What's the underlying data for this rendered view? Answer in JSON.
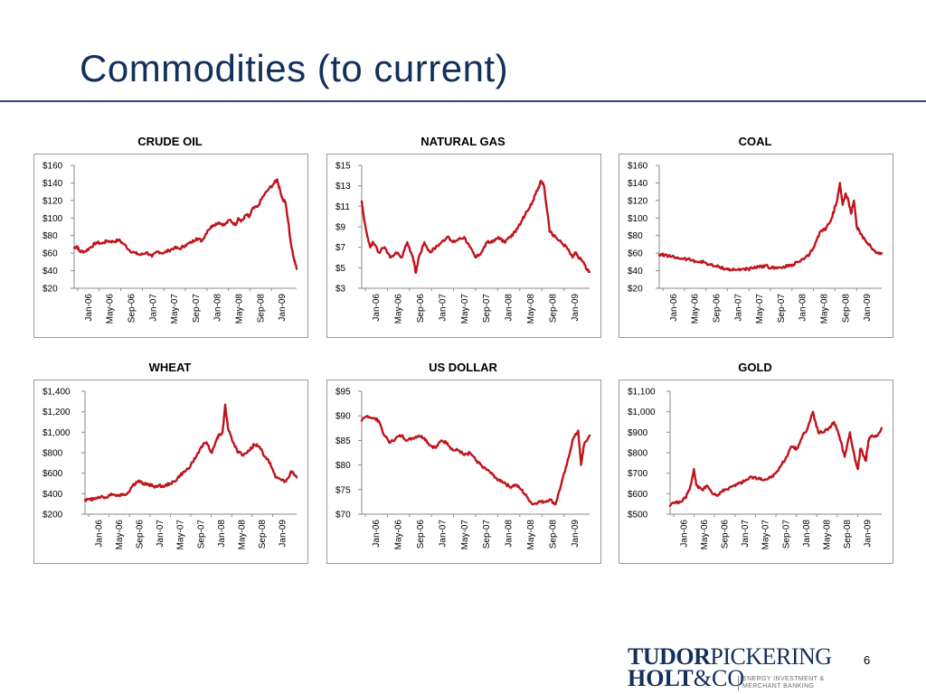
{
  "slide": {
    "title": "Commodities (to current)",
    "page_number": "6"
  },
  "logo": {
    "line1_bold": "TUDOR",
    "line1_rest": "PICKERING",
    "line2_bold": "HOLT",
    "line2_rest": "&CO",
    "tagline_1": "ENERGY INVESTMENT &",
    "tagline_2": "MERCHANT BANKING"
  },
  "colors": {
    "series": "#c0141c",
    "title": "#13305a",
    "axis": "#8a8a8a"
  },
  "chart_data": [
    {
      "id": "crude-oil",
      "type": "line",
      "title": "CRUDE OIL",
      "ylim": [
        20,
        160
      ],
      "yticks": [
        20,
        40,
        60,
        80,
        100,
        120,
        140,
        160
      ],
      "ytick_labels": [
        "$20",
        "$40",
        "$60",
        "$80",
        "$100",
        "$120",
        "$140",
        "$160"
      ],
      "xticks": [
        "Jan-06",
        "May-06",
        "Sep-06",
        "Jan-07",
        "May-07",
        "Sep-07",
        "Jan-08",
        "May-08",
        "Sep-08",
        "Jan-09"
      ],
      "xrange": [
        0,
        40
      ],
      "series": [
        {
          "x": [
            0,
            0.5,
            1,
            2,
            3,
            4,
            5,
            6,
            7,
            8,
            9,
            10,
            11,
            12,
            13,
            14,
            15,
            16,
            17,
            18,
            19,
            20,
            21,
            22,
            23,
            24,
            25,
            26,
            27,
            28,
            29,
            29.5,
            30,
            31,
            31.5,
            32,
            33,
            34,
            35,
            36,
            36.5,
            37,
            37.5,
            38,
            38.5,
            39,
            39.5,
            40
          ],
          "y": [
            66,
            68,
            62,
            62,
            67,
            72,
            71,
            74,
            73,
            75,
            70,
            63,
            60,
            58,
            61,
            56,
            62,
            60,
            63,
            66,
            65,
            69,
            72,
            77,
            74,
            86,
            92,
            95,
            92,
            98,
            92,
            100,
            96,
            104,
            101,
            110,
            113,
            125,
            133,
            140,
            144,
            132,
            121,
            118,
            95,
            70,
            55,
            42
          ]
        }
      ]
    },
    {
      "id": "natural-gas",
      "type": "line",
      "title": "NATURAL GAS",
      "ylim": [
        3,
        15
      ],
      "yticks": [
        3,
        5,
        7,
        9,
        11,
        13,
        15
      ],
      "ytick_labels": [
        "$3",
        "$5",
        "$7",
        "$9",
        "$11",
        "$13",
        "$15"
      ],
      "xticks": [
        "Jan-06",
        "May-06",
        "Sep-06",
        "Jan-07",
        "May-07",
        "Sep-07",
        "Jan-08",
        "May-08",
        "Sep-08",
        "Jan-09"
      ],
      "xrange": [
        0,
        40
      ],
      "series": [
        {
          "x": [
            0,
            0.5,
            1,
            1.5,
            2,
            3,
            4,
            5,
            6,
            7,
            8,
            9,
            9.5,
            10,
            11,
            12,
            13,
            14,
            15,
            16,
            17,
            18,
            19,
            20,
            21,
            22,
            23,
            24,
            25,
            26,
            27,
            28,
            29,
            30,
            31,
            31.5,
            32,
            33,
            34,
            35,
            36,
            37,
            37.5,
            38,
            39,
            39.5,
            40
          ],
          "y": [
            11.5,
            9.5,
            8,
            7,
            7.5,
            6.5,
            7,
            6,
            6.5,
            6,
            7.5,
            6,
            4.5,
            6,
            7.5,
            6.5,
            7,
            7.5,
            8,
            7.5,
            7.8,
            8,
            7,
            6,
            6.5,
            7.5,
            7.5,
            8,
            7.5,
            8,
            8.5,
            9.5,
            10.5,
            11.5,
            12.8,
            13.5,
            13,
            8.5,
            8,
            7.5,
            7,
            6,
            6.5,
            6,
            5.5,
            4.8,
            4.6
          ]
        }
      ]
    },
    {
      "id": "coal",
      "type": "line",
      "title": "COAL",
      "ylim": [
        20,
        160
      ],
      "yticks": [
        20,
        40,
        60,
        80,
        100,
        120,
        140,
        160
      ],
      "ytick_labels": [
        "$20",
        "$40",
        "$60",
        "$80",
        "$100",
        "$120",
        "$140",
        "$160"
      ],
      "xticks": [
        "Jan-06",
        "May-06",
        "Sep-06",
        "Jan-07",
        "May-07",
        "Sep-07",
        "Jan-08",
        "May-08",
        "Sep-08",
        "Jan-09"
      ],
      "xrange": [
        0,
        40
      ],
      "series": [
        {
          "x": [
            0,
            1,
            2,
            3,
            4,
            5,
            6,
            7,
            8,
            9,
            10,
            11,
            12,
            13,
            14,
            15,
            16,
            17,
            18,
            19,
            20,
            21,
            22,
            23,
            24,
            25,
            26,
            27,
            28,
            29,
            30,
            31,
            31.5,
            32,
            32.5,
            33,
            33.5,
            34,
            34.5,
            35,
            35.5,
            36,
            37,
            38,
            39,
            40
          ],
          "y": [
            58,
            58,
            56,
            55,
            54,
            53,
            52,
            50,
            50,
            47,
            45,
            44,
            42,
            41,
            41,
            42,
            42,
            43,
            44,
            46,
            43,
            44,
            43,
            45,
            47,
            50,
            53,
            58,
            70,
            85,
            88,
            100,
            110,
            120,
            140,
            115,
            128,
            120,
            105,
            120,
            90,
            85,
            75,
            68,
            60,
            60
          ]
        }
      ]
    },
    {
      "id": "wheat",
      "type": "line",
      "title": "WHEAT",
      "ylim": [
        200,
        1400
      ],
      "yticks": [
        200,
        400,
        600,
        800,
        1000,
        1200,
        1400
      ],
      "ytick_labels": [
        "$200",
        "$400",
        "$600",
        "$800",
        "$1,000",
        "$1,200",
        "$1,400"
      ],
      "xticks": [
        "Jan-06",
        "May-06",
        "Sep-06",
        "Jan-07",
        "May-07",
        "Sep-07",
        "Jan-08",
        "May-08",
        "Sep-08",
        "Jan-09"
      ],
      "xrange": [
        0,
        40
      ],
      "series": [
        {
          "x": [
            0,
            1,
            2,
            3,
            4,
            5,
            6,
            7,
            8,
            9,
            10,
            11,
            12,
            13,
            14,
            15,
            16,
            17,
            18,
            19,
            20,
            21,
            22,
            23,
            24,
            25,
            25.5,
            26,
            26.5,
            27,
            28,
            29,
            30,
            31,
            32,
            33,
            34,
            35,
            36,
            37,
            38,
            39,
            40
          ],
          "y": [
            340,
            340,
            360,
            370,
            360,
            400,
            380,
            390,
            400,
            480,
            520,
            500,
            490,
            470,
            480,
            470,
            500,
            520,
            580,
            620,
            680,
            760,
            860,
            900,
            800,
            950,
            980,
            1000,
            1270,
            1050,
            900,
            800,
            780,
            820,
            880,
            860,
            760,
            700,
            560,
            540,
            520,
            620,
            560
          ]
        }
      ]
    },
    {
      "id": "us-dollar",
      "type": "line",
      "title": "US DOLLAR",
      "ylim": [
        70,
        95
      ],
      "yticks": [
        70,
        75,
        80,
        85,
        90,
        95
      ],
      "ytick_labels": [
        "$70",
        "$75",
        "$80",
        "$85",
        "$90",
        "$95"
      ],
      "xticks": [
        "Jan-06",
        "May-06",
        "Sep-06",
        "Jan-07",
        "May-07",
        "Sep-07",
        "Jan-08",
        "May-08",
        "Sep-08",
        "Jan-09"
      ],
      "xrange": [
        0,
        40
      ],
      "series": [
        {
          "x": [
            0,
            1,
            2,
            3,
            4,
            5,
            6,
            7,
            8,
            9,
            10,
            11,
            12,
            13,
            14,
            15,
            16,
            17,
            18,
            19,
            20,
            21,
            22,
            23,
            24,
            25,
            26,
            27,
            28,
            29,
            30,
            31,
            32,
            33,
            34,
            35,
            36,
            37,
            38,
            38.5,
            39,
            40
          ],
          "y": [
            89,
            90,
            89.5,
            89,
            86,
            84.5,
            85.5,
            86,
            85,
            85.5,
            86,
            85.5,
            84,
            83.5,
            85,
            84.5,
            83,
            83,
            82,
            82.5,
            81,
            80,
            79,
            78,
            77,
            76.5,
            75.5,
            76,
            75,
            73.5,
            72,
            72.5,
            72.5,
            73,
            72,
            76,
            80,
            85,
            87,
            80,
            84,
            86
          ]
        }
      ]
    },
    {
      "id": "gold",
      "type": "line",
      "title": "GOLD",
      "ylim": [
        500,
        1100
      ],
      "yticks": [
        500,
        600,
        700,
        800,
        900,
        1000,
        1100
      ],
      "ytick_labels": [
        "$500",
        "$600",
        "$700",
        "$800",
        "$900",
        "$1,000",
        "$1,100"
      ],
      "xticks": [
        "Jan-06",
        "May-06",
        "Sep-06",
        "Jan-07",
        "May-07",
        "Sep-07",
        "Jan-08",
        "May-08",
        "Sep-08",
        "Jan-09"
      ],
      "xrange": [
        0,
        40
      ],
      "series": [
        {
          "x": [
            0,
            1,
            2,
            3,
            4,
            4.5,
            5,
            6,
            7,
            8,
            9,
            10,
            11,
            12,
            13,
            14,
            15,
            16,
            17,
            18,
            19,
            20,
            21,
            22,
            23,
            24,
            25,
            26,
            27,
            28,
            29,
            30,
            31,
            32,
            33,
            34,
            35,
            35.5,
            36,
            37,
            37.5,
            38,
            39,
            40
          ],
          "y": [
            540,
            560,
            560,
            580,
            650,
            720,
            640,
            620,
            640,
            600,
            590,
            620,
            620,
            640,
            650,
            660,
            680,
            680,
            670,
            670,
            680,
            700,
            740,
            780,
            830,
            820,
            880,
            920,
            1000,
            900,
            900,
            920,
            950,
            880,
            780,
            900,
            760,
            720,
            820,
            760,
            860,
            880,
            880,
            920
          ]
        }
      ]
    }
  ]
}
